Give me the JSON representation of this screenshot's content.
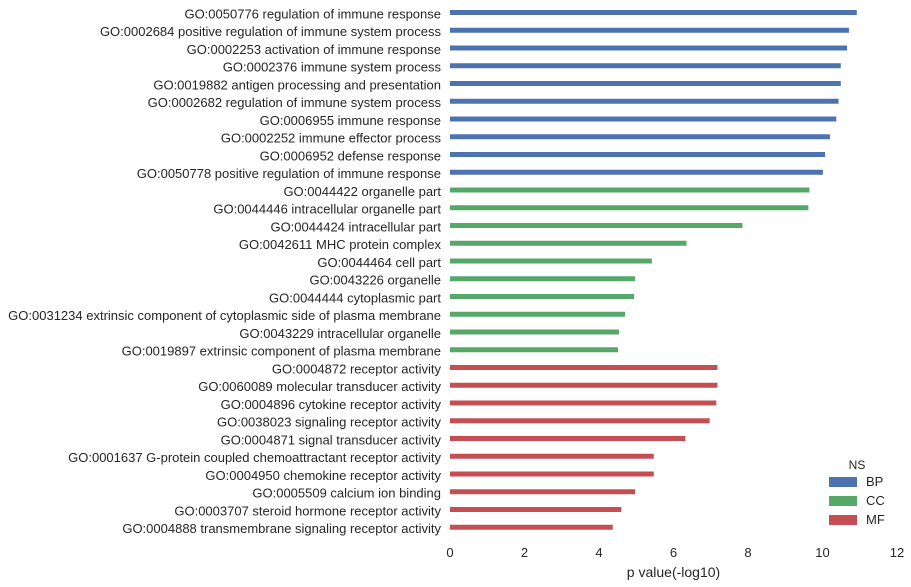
{
  "chart_data": {
    "type": "bar",
    "orientation": "horizontal",
    "xlabel": "p value(-log10)",
    "xlim": [
      0,
      12
    ],
    "xticks": [
      "0",
      "2",
      "4",
      "6",
      "8",
      "10",
      "12"
    ],
    "grid": false,
    "legend": {
      "title": "NS",
      "placement": "bottom-right",
      "entries": [
        {
          "name": "BP",
          "color": "#4c72b0"
        },
        {
          "name": "CC",
          "color": "#55a868"
        },
        {
          "name": "MF",
          "color": "#c44e52"
        }
      ]
    },
    "bars": [
      {
        "label": "GO:0050776 regulation of immune response",
        "value": 10.92,
        "ns": "BP"
      },
      {
        "label": "GO:0002684 positive regulation of immune system process",
        "value": 10.71,
        "ns": "BP"
      },
      {
        "label": "GO:0002253 activation of immune response",
        "value": 10.66,
        "ns": "BP"
      },
      {
        "label": "GO:0002376 immune system process",
        "value": 10.49,
        "ns": "BP"
      },
      {
        "label": "GO:0019882 antigen processing and presentation",
        "value": 10.49,
        "ns": "BP"
      },
      {
        "label": "GO:0002682 regulation of immune system process",
        "value": 10.43,
        "ns": "BP"
      },
      {
        "label": "GO:0006955 immune response",
        "value": 10.37,
        "ns": "BP"
      },
      {
        "label": "GO:0002252 immune effector process",
        "value": 10.2,
        "ns": "BP"
      },
      {
        "label": "GO:0006952 defense response",
        "value": 10.07,
        "ns": "BP"
      },
      {
        "label": "GO:0050778 positive regulation of immune response",
        "value": 10.01,
        "ns": "BP"
      },
      {
        "label": "GO:0044422 organelle part",
        "value": 9.65,
        "ns": "CC"
      },
      {
        "label": "GO:0044446 intracellular organelle part",
        "value": 9.62,
        "ns": "CC"
      },
      {
        "label": "GO:0044424 intracellular part",
        "value": 7.85,
        "ns": "CC"
      },
      {
        "label": "GO:0042611 MHC protein complex",
        "value": 6.35,
        "ns": "CC"
      },
      {
        "label": "GO:0044464 cell part",
        "value": 5.42,
        "ns": "CC"
      },
      {
        "label": "GO:0043226 organelle",
        "value": 4.97,
        "ns": "CC"
      },
      {
        "label": "GO:0044444 cytoplasmic part",
        "value": 4.94,
        "ns": "CC"
      },
      {
        "label": "GO:0031234 extrinsic component of cytoplasmic side of plasma membrane",
        "value": 4.7,
        "ns": "CC"
      },
      {
        "label": "GO:0043229 intracellular organelle",
        "value": 4.54,
        "ns": "CC"
      },
      {
        "label": "GO:0019897 extrinsic component of plasma membrane",
        "value": 4.51,
        "ns": "CC"
      },
      {
        "label": "GO:0004872 receptor activity",
        "value": 7.18,
        "ns": "MF"
      },
      {
        "label": "GO:0060089 molecular transducer activity",
        "value": 7.18,
        "ns": "MF"
      },
      {
        "label": "GO:0004896 cytokine receptor activity",
        "value": 7.15,
        "ns": "MF"
      },
      {
        "label": "GO:0038023 signaling receptor activity",
        "value": 6.97,
        "ns": "MF"
      },
      {
        "label": "GO:0004871 signal transducer activity",
        "value": 6.32,
        "ns": "MF"
      },
      {
        "label": "GO:0001637 G-protein coupled chemoattractant receptor activity",
        "value": 5.47,
        "ns": "MF"
      },
      {
        "label": "GO:0004950 chemokine receptor activity",
        "value": 5.47,
        "ns": "MF"
      },
      {
        "label": "GO:0005509 calcium ion binding",
        "value": 4.97,
        "ns": "MF"
      },
      {
        "label": "GO:0003707 steroid hormone receptor activity",
        "value": 4.6,
        "ns": "MF"
      },
      {
        "label": "GO:0004888 transmembrane signaling receptor activity",
        "value": 4.37,
        "ns": "MF"
      }
    ]
  }
}
